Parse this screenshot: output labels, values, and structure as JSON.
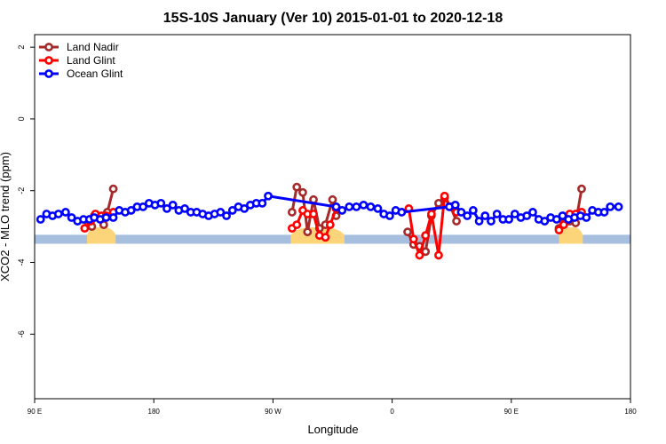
{
  "chart_data": {
    "type": "line",
    "title": "15S-10S January (Ver 10)   2015-01-01 to 2020-12-18",
    "xlabel": "Longitude",
    "ylabel": "XCO2 - MLO trend (ppm)",
    "xlim": [
      0,
      500
    ],
    "ylim": [
      -7.8,
      2.35
    ],
    "x_ticks": [
      {
        "value": 0,
        "label": "90 E"
      },
      {
        "value": 100,
        "label": "180"
      },
      {
        "value": 200,
        "label": "90 W"
      },
      {
        "value": 300,
        "label": "0"
      },
      {
        "value": 400,
        "label": "90 E"
      },
      {
        "value": 500,
        "label": "180"
      }
    ],
    "y_ticks": [
      {
        "value": 2,
        "label": "2"
      },
      {
        "value": 0,
        "label": "0"
      },
      {
        "value": -2,
        "label": "-2"
      },
      {
        "value": -4,
        "label": "-4"
      },
      {
        "value": -6,
        "label": "-6"
      }
    ],
    "grid": false,
    "legend_position": "top-left",
    "land_band": {
      "y_range": [
        -3.48,
        -3.23
      ],
      "color": "#a7bfdf",
      "land_color": "#fcd57a",
      "land_spans": [
        [
          44,
          68
        ],
        [
          215,
          260
        ],
        [
          440,
          460
        ]
      ]
    },
    "series": [
      {
        "name": "Land Nadir",
        "color": "#a52a2a",
        "points": [
          [
            45,
            -2.95
          ],
          [
            48,
            -3.0
          ],
          [
            50,
            -2.7
          ],
          [
            55,
            -2.75
          ],
          [
            58,
            -2.95
          ],
          [
            61,
            -2.6
          ],
          [
            66,
            -1.95
          ]
        ]
      },
      {
        "name": "Land Glint",
        "color": "#ff0000",
        "points": [
          [
            42,
            -3.05
          ],
          [
            47,
            -2.85
          ],
          [
            51,
            -2.65
          ],
          [
            56,
            -2.7
          ],
          [
            60,
            -2.7
          ],
          [
            66,
            -2.6
          ]
        ]
      },
      {
        "name": "Land Nadir",
        "color": "#a52a2a",
        "points": [
          [
            216,
            -2.6
          ],
          [
            220,
            -1.9
          ],
          [
            225,
            -2.05
          ],
          [
            229,
            -3.15
          ],
          [
            234,
            -2.25
          ],
          [
            239,
            -3.05
          ],
          [
            244,
            -2.95
          ],
          [
            250,
            -2.25
          ],
          [
            253,
            -2.7
          ]
        ]
      },
      {
        "name": "Land Glint",
        "color": "#ff0000",
        "points": [
          [
            216,
            -3.05
          ],
          [
            220,
            -2.95
          ],
          [
            225,
            -2.55
          ],
          [
            229,
            -2.65
          ],
          [
            234,
            -2.65
          ],
          [
            239,
            -3.25
          ],
          [
            244,
            -3.3
          ],
          [
            248,
            -2.95
          ],
          [
            253,
            -2.5
          ]
        ]
      },
      {
        "name": "Land Nadir",
        "color": "#a52a2a",
        "points": [
          [
            313,
            -3.15
          ],
          [
            318,
            -3.5
          ],
          [
            323,
            -3.55
          ],
          [
            328,
            -3.7
          ],
          [
            333,
            -2.7
          ],
          [
            339,
            -2.35
          ],
          [
            344,
            -2.2
          ],
          [
            349,
            -2.45
          ],
          [
            354,
            -2.85
          ]
        ]
      },
      {
        "name": "Land Glint",
        "color": "#ff0000",
        "points": [
          [
            314,
            -2.5
          ],
          [
            318,
            -3.35
          ],
          [
            323,
            -3.8
          ],
          [
            328,
            -3.25
          ],
          [
            333,
            -2.65
          ],
          [
            339,
            -3.8
          ],
          [
            344,
            -2.15
          ],
          [
            349,
            -2.45
          ],
          [
            354,
            -2.6
          ]
        ]
      },
      {
        "name": "Land Nadir",
        "color": "#a52a2a",
        "points": [
          [
            440,
            -3.05
          ],
          [
            444,
            -2.9
          ],
          [
            449,
            -2.85
          ],
          [
            454,
            -2.9
          ],
          [
            459,
            -1.95
          ]
        ]
      },
      {
        "name": "Land Glint",
        "color": "#ff0000",
        "points": [
          [
            440,
            -3.1
          ],
          [
            444,
            -2.95
          ],
          [
            449,
            -2.65
          ],
          [
            454,
            -2.65
          ],
          [
            459,
            -2.6
          ]
        ]
      },
      {
        "name": "Ocean Glint",
        "color": "#0000ff",
        "points": [
          [
            5,
            -2.8
          ],
          [
            10,
            -2.65
          ],
          [
            15,
            -2.7
          ],
          [
            20,
            -2.65
          ],
          [
            26,
            -2.6
          ],
          [
            31,
            -2.75
          ],
          [
            36,
            -2.85
          ],
          [
            41,
            -2.8
          ],
          [
            46,
            -2.8
          ],
          [
            50,
            -2.75
          ],
          [
            55,
            -2.8
          ],
          [
            60,
            -2.75
          ],
          [
            66,
            -2.75
          ],
          [
            71,
            -2.55
          ],
          [
            76,
            -2.6
          ],
          [
            81,
            -2.55
          ],
          [
            86,
            -2.45
          ],
          [
            91,
            -2.45
          ],
          [
            96,
            -2.35
          ],
          [
            101,
            -2.4
          ],
          [
            106,
            -2.35
          ],
          [
            111,
            -2.5
          ],
          [
            116,
            -2.4
          ],
          [
            121,
            -2.55
          ],
          [
            126,
            -2.5
          ],
          [
            131,
            -2.6
          ],
          [
            136,
            -2.6
          ],
          [
            141,
            -2.65
          ],
          [
            146,
            -2.7
          ],
          [
            151,
            -2.65
          ],
          [
            156,
            -2.6
          ],
          [
            161,
            -2.7
          ],
          [
            166,
            -2.55
          ],
          [
            171,
            -2.45
          ],
          [
            176,
            -2.5
          ],
          [
            181,
            -2.4
          ],
          [
            186,
            -2.35
          ],
          [
            191,
            -2.35
          ],
          [
            196,
            -2.15
          ],
          [
            253,
            -2.45
          ],
          [
            258,
            -2.55
          ],
          [
            264,
            -2.45
          ],
          [
            270,
            -2.45
          ],
          [
            276,
            -2.4
          ],
          [
            282,
            -2.45
          ],
          [
            288,
            -2.5
          ],
          [
            293,
            -2.65
          ],
          [
            298,
            -2.7
          ],
          [
            303,
            -2.55
          ],
          [
            308,
            -2.6
          ],
          [
            348,
            -2.45
          ],
          [
            353,
            -2.4
          ],
          [
            358,
            -2.6
          ],
          [
            363,
            -2.7
          ],
          [
            368,
            -2.55
          ],
          [
            373,
            -2.85
          ],
          [
            378,
            -2.7
          ],
          [
            383,
            -2.85
          ],
          [
            388,
            -2.65
          ],
          [
            393,
            -2.8
          ],
          [
            398,
            -2.8
          ],
          [
            403,
            -2.65
          ],
          [
            408,
            -2.75
          ],
          [
            413,
            -2.7
          ],
          [
            418,
            -2.6
          ],
          [
            423,
            -2.8
          ],
          [
            428,
            -2.85
          ],
          [
            433,
            -2.75
          ],
          [
            438,
            -2.8
          ],
          [
            443,
            -2.7
          ],
          [
            448,
            -2.8
          ],
          [
            453,
            -2.75
          ],
          [
            458,
            -2.7
          ],
          [
            463,
            -2.75
          ],
          [
            468,
            -2.55
          ],
          [
            473,
            -2.6
          ],
          [
            478,
            -2.6
          ],
          [
            483,
            -2.45
          ],
          [
            490,
            -2.45
          ]
        ]
      }
    ]
  },
  "legend": [
    {
      "label": "Land Nadir",
      "color": "#a52a2a"
    },
    {
      "label": "Land Glint",
      "color": "#ff0000"
    },
    {
      "label": "Ocean Glint",
      "color": "#0000ff"
    }
  ]
}
